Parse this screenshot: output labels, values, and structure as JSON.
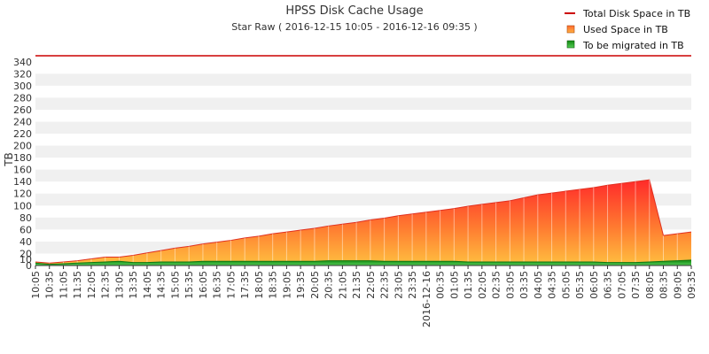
{
  "chart_data": {
    "type": "area",
    "title": "HPSS Disk Cache Usage",
    "subtitle": "Star Raw ( 2016-12-15 10:05 - 2016-12-16 09:35 )",
    "ylabel": "TB",
    "xlabel": "",
    "ylim": [
      0,
      350
    ],
    "yticks": [
      0,
      10,
      20,
      40,
      60,
      80,
      100,
      120,
      140,
      160,
      180,
      200,
      220,
      240,
      260,
      280,
      300,
      320,
      340
    ],
    "grid": true,
    "legend_position": "top-right",
    "categories": [
      "10:05",
      "10:35",
      "11:05",
      "11:35",
      "12:05",
      "12:35",
      "13:05",
      "13:35",
      "14:05",
      "14:35",
      "15:05",
      "15:35",
      "16:05",
      "16:35",
      "17:05",
      "17:35",
      "18:05",
      "18:35",
      "19:05",
      "19:35",
      "20:05",
      "20:35",
      "21:05",
      "21:35",
      "22:05",
      "22:35",
      "23:05",
      "23:35",
      "2016-12-16",
      "00:35",
      "01:05",
      "01:35",
      "02:05",
      "02:35",
      "03:05",
      "03:35",
      "04:05",
      "04:35",
      "05:05",
      "05:35",
      "06:05",
      "06:35",
      "07:05",
      "07:35",
      "08:05",
      "08:35",
      "09:05",
      "09:35"
    ],
    "series": [
      {
        "name": "Total Disk Space in TB",
        "type": "line",
        "color": "#cc0000",
        "values": [
          350,
          350,
          350,
          350,
          350,
          350,
          350,
          350,
          350,
          350,
          350,
          350,
          350,
          350,
          350,
          350,
          350,
          350,
          350,
          350,
          350,
          350,
          350,
          350,
          350,
          350,
          350,
          350,
          350,
          350,
          350,
          350,
          350,
          350,
          350,
          350,
          350,
          350,
          350,
          350,
          350,
          350,
          350,
          350,
          350,
          350,
          350,
          350
        ]
      },
      {
        "name": "Used Space in TB",
        "type": "area",
        "color": "#f07020",
        "values": [
          6,
          4,
          6,
          8,
          11,
          14,
          14,
          17,
          21,
          25,
          29,
          32,
          36,
          39,
          42,
          46,
          49,
          53,
          56,
          59,
          62,
          66,
          69,
          72,
          76,
          79,
          83,
          86,
          89,
          92,
          95,
          99,
          102,
          105,
          108,
          113,
          118,
          121,
          124,
          127,
          130,
          134,
          137,
          140,
          143,
          50,
          53,
          56
        ]
      },
      {
        "name": "To be migrated in TB",
        "type": "area",
        "color": "#22aa22",
        "values": [
          4,
          2,
          3,
          4,
          5,
          6,
          7,
          5,
          5,
          6,
          6,
          6,
          7,
          7,
          7,
          7,
          7,
          7,
          7,
          7,
          7,
          8,
          8,
          8,
          8,
          7,
          7,
          7,
          7,
          7,
          7,
          6,
          6,
          6,
          6,
          6,
          6,
          6,
          6,
          6,
          6,
          5,
          5,
          5,
          6,
          7,
          8,
          9
        ]
      }
    ]
  }
}
